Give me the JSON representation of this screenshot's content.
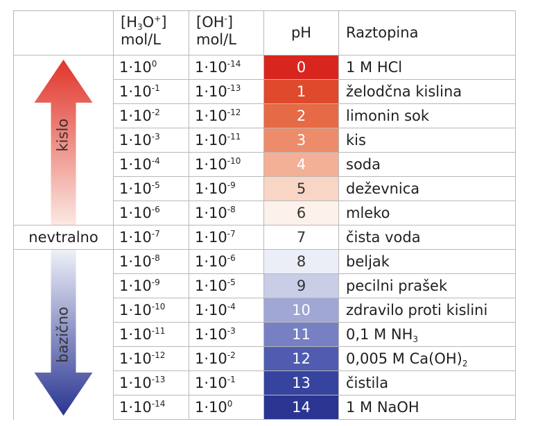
{
  "header": {
    "h3o_line1_a": "[H",
    "h3o_line1_sub": "3",
    "h3o_line1_b": "O",
    "h3o_line1_sup": "+",
    "h3o_line1_c": "]",
    "h3o_line2": "mol/L",
    "oh_line1_a": "[OH",
    "oh_line1_sup": "-",
    "oh_line1_c": "]",
    "oh_line2": "mol/L",
    "ph": "pH",
    "raztopina": "Raztopina"
  },
  "side": {
    "acid_label": "kislo",
    "neutral_label": "nevtralno",
    "base_label": "bazično"
  },
  "rows": [
    {
      "h_base": "1·10",
      "h_exp": "0",
      "oh_base": "1·10",
      "oh_exp": "-14",
      "ph": "0",
      "solution": "1 M HCl",
      "sol_sub": "",
      "sol_tail": "",
      "bg": "#d8261e",
      "fg": "#ffffff"
    },
    {
      "h_base": "1·10",
      "h_exp": "-1",
      "oh_base": "1·10",
      "oh_exp": "-13",
      "ph": "1",
      "solution": "želodčna kislina",
      "sol_sub": "",
      "sol_tail": "",
      "bg": "#df4a2c",
      "fg": "#ffffff"
    },
    {
      "h_base": "1·10",
      "h_exp": "-2",
      "oh_base": "1·10",
      "oh_exp": "-12",
      "ph": "2",
      "solution": "limonin sok",
      "sol_sub": "",
      "sol_tail": "",
      "bg": "#e56a45",
      "fg": "#ffffff"
    },
    {
      "h_base": "1·10",
      "h_exp": "-3",
      "oh_base": "1·10",
      "oh_exp": "-11",
      "ph": "3",
      "solution": "kis",
      "sol_sub": "",
      "sol_tail": "",
      "bg": "#ec8c6a",
      "fg": "#ffffff"
    },
    {
      "h_base": "1·10",
      "h_exp": "-4",
      "oh_base": "1·10",
      "oh_exp": "-10",
      "ph": "4",
      "solution": "soda",
      "sol_sub": "",
      "sol_tail": "",
      "bg": "#f3b096",
      "fg": "#ffffff"
    },
    {
      "h_base": "1·10",
      "h_exp": "-5",
      "oh_base": "1·10",
      "oh_exp": "-9",
      "ph": "5",
      "solution": "deževnica",
      "sol_sub": "",
      "sol_tail": "",
      "bg": "#f9d5c6",
      "fg": "#333333"
    },
    {
      "h_base": "1·10",
      "h_exp": "-6",
      "oh_base": "1·10",
      "oh_exp": "-8",
      "ph": "6",
      "solution": "mleko",
      "sol_sub": "",
      "sol_tail": "",
      "bg": "#fdf1ec",
      "fg": "#333333"
    },
    {
      "h_base": "1·10",
      "h_exp": "-7",
      "oh_base": "1·10",
      "oh_exp": "-7",
      "ph": "7",
      "solution": "čista voda",
      "sol_sub": "",
      "sol_tail": "",
      "bg": "#ffffff",
      "fg": "#333333"
    },
    {
      "h_base": "1·10",
      "h_exp": "-8",
      "oh_base": "1·10",
      "oh_exp": "-6",
      "ph": "8",
      "solution": "beljak",
      "sol_sub": "",
      "sol_tail": "",
      "bg": "#eceef7",
      "fg": "#333333"
    },
    {
      "h_base": "1·10",
      "h_exp": "-9",
      "oh_base": "1·10",
      "oh_exp": "-5",
      "ph": "9",
      "solution": "pecilni prašek",
      "sol_sub": "",
      "sol_tail": "",
      "bg": "#c9cde6",
      "fg": "#333333"
    },
    {
      "h_base": "1·10",
      "h_exp": "-10",
      "oh_base": "1·10",
      "oh_exp": "-4",
      "ph": "10",
      "solution": "zdravilo proti kislini",
      "sol_sub": "",
      "sol_tail": "",
      "bg": "#a0a7d5",
      "fg": "#ffffff"
    },
    {
      "h_base": "1·10",
      "h_exp": "-11",
      "oh_base": "1·10",
      "oh_exp": "-3",
      "ph": "11",
      "solution": "0,1 M NH",
      "sol_sub": "3",
      "sol_tail": "",
      "bg": "#7680c2",
      "fg": "#ffffff"
    },
    {
      "h_base": "1·10",
      "h_exp": "-12",
      "oh_base": "1·10",
      "oh_exp": "-2",
      "ph": "12",
      "solution": "0,005 M Ca(OH)",
      "sol_sub": "2",
      "sol_tail": "",
      "bg": "#4f5cb0",
      "fg": "#ffffff"
    },
    {
      "h_base": "1·10",
      "h_exp": "-13",
      "oh_base": "1·10",
      "oh_exp": "-1",
      "ph": "13",
      "solution": "čistila",
      "sol_sub": "",
      "sol_tail": "",
      "bg": "#36449f",
      "fg": "#ffffff"
    },
    {
      "h_base": "1·10",
      "h_exp": "-14",
      "oh_base": "1·10",
      "oh_exp": "0",
      "ph": "14",
      "solution": "1 M NaOH",
      "sol_sub": "",
      "sol_tail": "",
      "bg": "#2a3591",
      "fg": "#ffffff"
    }
  ],
  "colors": {
    "acid_arrow_top": "#e0342a",
    "acid_arrow_bottom": "#fbe8e2",
    "base_arrow_top": "#eef0f8",
    "base_arrow_bottom": "#2a3591",
    "border": "#b8b8b8"
  }
}
